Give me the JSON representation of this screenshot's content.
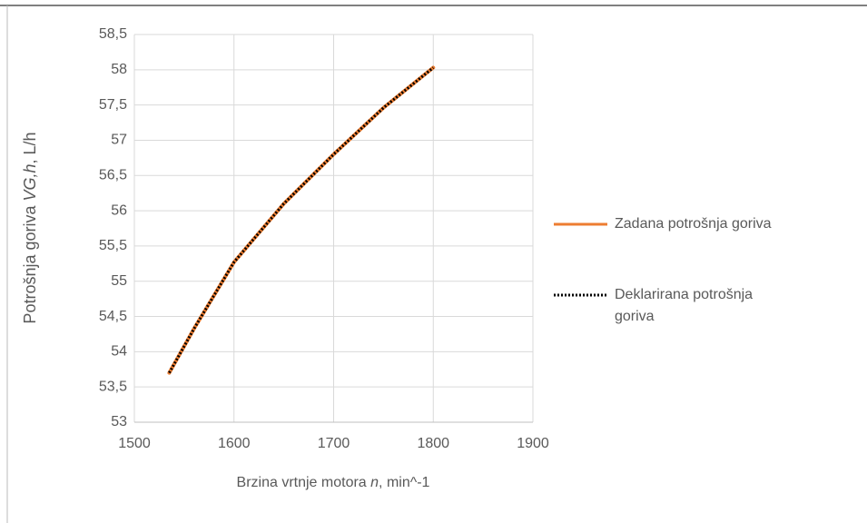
{
  "chart_data": {
    "type": "line",
    "xlabel": [
      "Brzina vrtnje motora ",
      "n",
      ", min^-1"
    ],
    "ylabel": [
      "Potrošnja goriva  ",
      "VG,h",
      ", L/h"
    ],
    "x": [
      1535,
      1560,
      1600,
      1650,
      1700,
      1750,
      1800
    ],
    "series": [
      {
        "name": "Zadana potrošnja goriva",
        "color": "#ed7d31",
        "style": "solid",
        "values": [
          53.7,
          54.33,
          55.27,
          56.1,
          56.8,
          57.46,
          58.03
        ]
      },
      {
        "name": "Deklarirana potrošnja goriva",
        "color": "#000000",
        "style": "dotted",
        "values": [
          53.7,
          54.33,
          55.27,
          56.1,
          56.8,
          57.46,
          58.03
        ]
      }
    ],
    "xlim": [
      1500,
      1900
    ],
    "xticks": [
      1500,
      1600,
      1700,
      1800,
      1900
    ],
    "ylim": [
      53,
      58.5
    ],
    "yticks": [
      53,
      {
        "value": 53.5,
        "label": "53,5"
      },
      54,
      {
        "value": 54.5,
        "label": "54,5"
      },
      55,
      {
        "value": 55.5,
        "label": "55,5"
      },
      56,
      {
        "value": 56.5,
        "label": "56,5"
      },
      57,
      {
        "value": 57.5,
        "label": "57,5"
      },
      58,
      {
        "value": 58.5,
        "label": "58,5"
      }
    ],
    "grid": true,
    "legend": "right"
  }
}
